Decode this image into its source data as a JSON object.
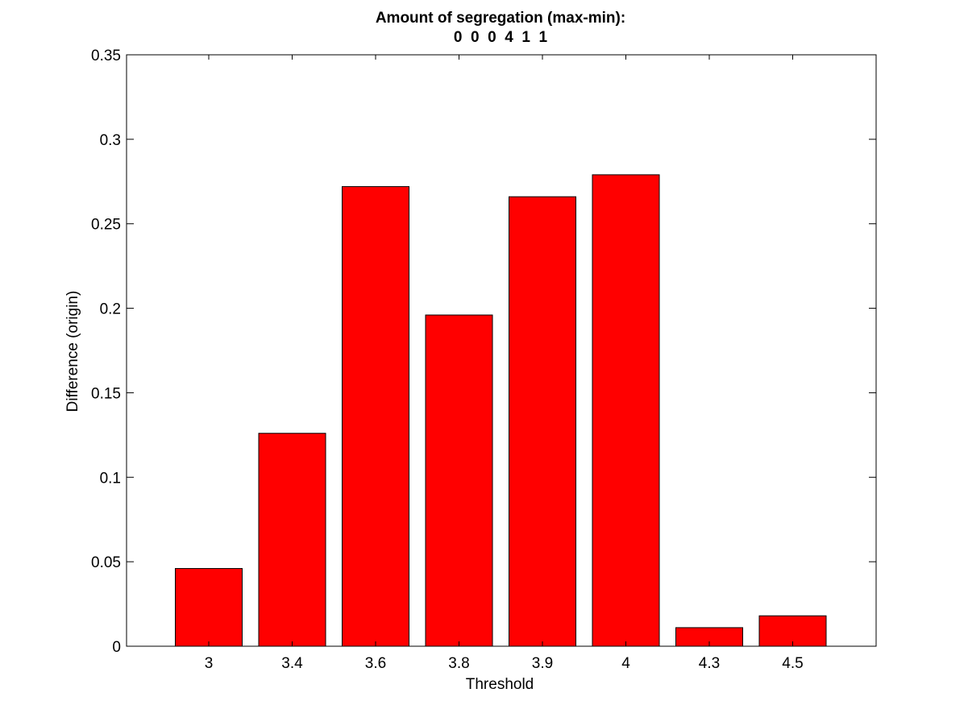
{
  "chart_data": {
    "type": "bar",
    "title": "Amount of segregation (max-min):",
    "subtitle": "0  0  0  4  1  1",
    "xlabel": "Threshold",
    "ylabel": "Difference (origin)",
    "categories": [
      "3",
      "3.4",
      "3.6",
      "3.8",
      "3.9",
      "4",
      "4.3",
      "4.5"
    ],
    "values": [
      0.046,
      0.126,
      0.272,
      0.196,
      0.266,
      0.279,
      0.011,
      0.018
    ],
    "ylim": [
      0,
      0.35
    ],
    "yticks": [
      "0",
      "0.05",
      "0.1",
      "0.15",
      "0.2",
      "0.25",
      "0.3",
      "0.35"
    ],
    "grid": false,
    "bar_color": "#ff0000",
    "edge_color": "#000000"
  }
}
